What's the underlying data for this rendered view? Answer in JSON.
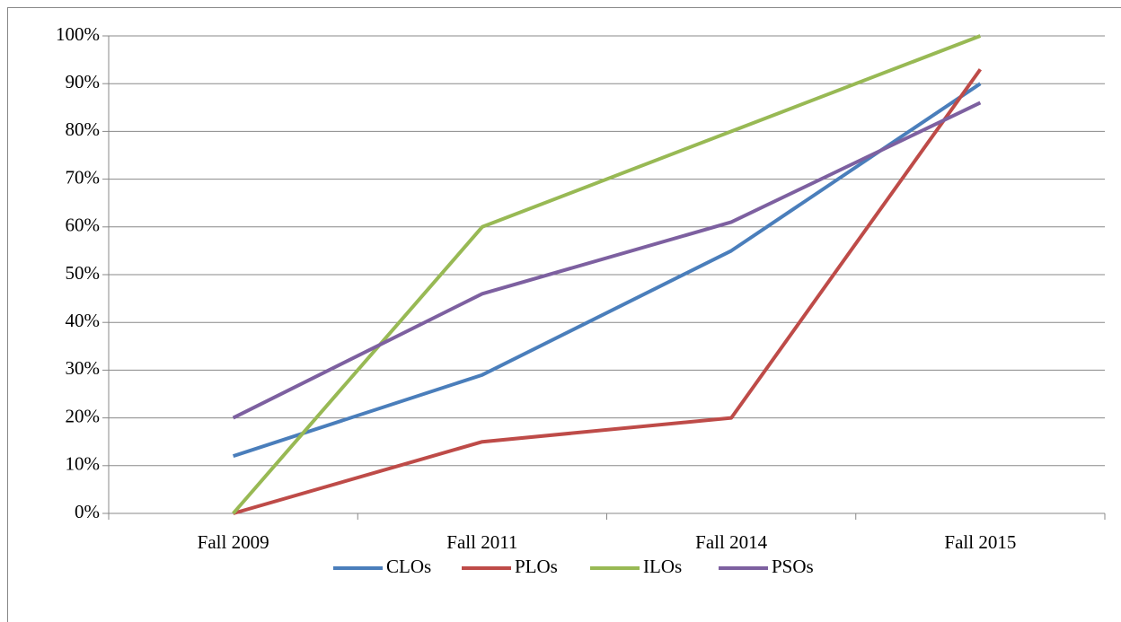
{
  "chart_data": {
    "type": "line",
    "categories": [
      "Fall 2009",
      "Fall 2011",
      "Fall 2014",
      "Fall 2015"
    ],
    "series": [
      {
        "name": "CLOs",
        "color": "#4a7ebb",
        "values": [
          12,
          29,
          55,
          90
        ]
      },
      {
        "name": "PLOs",
        "color": "#be4b48",
        "values": [
          0,
          15,
          20,
          93
        ]
      },
      {
        "name": "ILOs",
        "color": "#98b954",
        "values": [
          0,
          60,
          80,
          100
        ]
      },
      {
        "name": "PSOs",
        "color": "#7d60a0",
        "values": [
          20,
          46,
          61,
          86
        ]
      }
    ],
    "ylim": [
      0,
      100
    ],
    "yticks": [
      {
        "value": 0,
        "label": "0%"
      },
      {
        "value": 10,
        "label": "10%"
      },
      {
        "value": 20,
        "label": "20%"
      },
      {
        "value": 30,
        "label": "30%"
      },
      {
        "value": 40,
        "label": "40%"
      },
      {
        "value": 50,
        "label": "50%"
      },
      {
        "value": 60,
        "label": "60%"
      },
      {
        "value": 70,
        "label": "70%"
      },
      {
        "value": 80,
        "label": "80%"
      },
      {
        "value": 90,
        "label": "90%"
      },
      {
        "value": 100,
        "label": "100%"
      }
    ],
    "grid": true,
    "legend": "bottom"
  }
}
